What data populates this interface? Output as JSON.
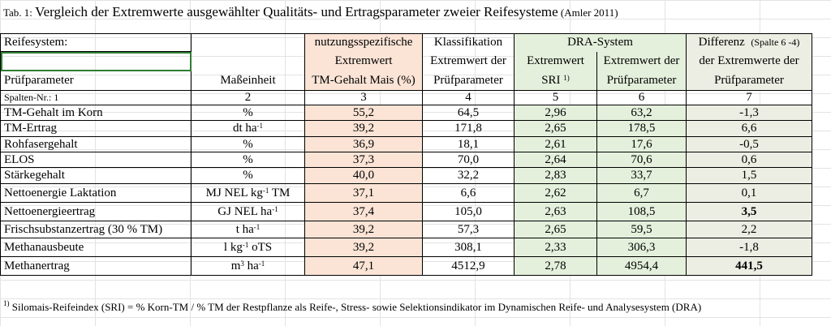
{
  "title": {
    "prefix": "Tab. 1: ",
    "main": "Vergleich der Extremwerte ausgewählter Qualitäts- und Ertragsparameter zweier Reifesysteme",
    "source": "(Amler 2011)"
  },
  "header": {
    "reifesystem": "Reifesystem:",
    "nutzung": "nutzungsspezifische",
    "klassifikation": "Klassifikation",
    "dra": "DRA-System",
    "differenz": "Differenz",
    "differenz_note": "(Spalte 6 -4)",
    "extremwert": "Extremwert",
    "extremwert_der": "Extremwert der",
    "extremwert_dra": "Extremwert",
    "extremwert_der_dra": "Extremwert der",
    "der_extremwerte": "der Extremwerte der",
    "pruefparameter": "Prüfparameter",
    "masseinheit": "Maßeinheit",
    "tm_gehalt_mais": "TM-Gehalt Mais (%)",
    "pruefparameter_c4": "Prüfparameter",
    "sri": "SRI",
    "sri_sup": "1)",
    "pruefparameter_c6": "Prüfparameter",
    "pruefparameter_c7": "Prüfparameter",
    "spalten_nr": "Spalten-Nr.: 1",
    "col_numbers": [
      "2",
      "3",
      "4",
      "5",
      "6",
      "7"
    ]
  },
  "rows": [
    {
      "param": "TM-Gehalt im Korn",
      "unit": "%",
      "unit_sup": "",
      "unit_tail": "",
      "c3": "55,2",
      "c4": "64,5",
      "c5": "2,96",
      "c6": "63,2",
      "c7": "-1,3",
      "bold": false
    },
    {
      "param": "TM-Ertrag",
      "unit": "dt ha",
      "unit_sup": "-1",
      "unit_tail": "",
      "c3": "39,2",
      "c4": "171,8",
      "c5": "2,65",
      "c6": "178,5",
      "c7": "6,6",
      "bold": false
    },
    {
      "param": "Rohfasergehalt",
      "unit": "%",
      "unit_sup": "",
      "unit_tail": "",
      "c3": "36,9",
      "c4": "18,1",
      "c5": "2,61",
      "c6": "17,6",
      "c7": "-0,5",
      "bold": false
    },
    {
      "param": "ELOS",
      "unit": "%",
      "unit_sup": "",
      "unit_tail": "",
      "c3": "37,3",
      "c4": "70,0",
      "c5": "2,64",
      "c6": "70,6",
      "c7": "0,6",
      "bold": false
    },
    {
      "param": "Stärkegehalt",
      "unit": "%",
      "unit_sup": "",
      "unit_tail": "",
      "c3": "40,0",
      "c4": "32,2",
      "c5": "2,83",
      "c6": "33,7",
      "c7": "1,5",
      "bold": false
    },
    {
      "param": "Nettoenergie Laktation",
      "unit": "MJ NEL kg",
      "unit_sup": "-1",
      "unit_tail": " TM",
      "c3": "37,1",
      "c4": "6,6",
      "c5": "2,62",
      "c6": "6,7",
      "c7": "0,1",
      "bold": false
    },
    {
      "param": "Nettoenergieertrag",
      "unit": "GJ NEL ha",
      "unit_sup": "-1",
      "unit_tail": "",
      "c3": "37,4",
      "c4": "105,0",
      "c5": "2,63",
      "c6": "108,5",
      "c7": "3,5",
      "bold": true
    },
    {
      "param": "Frischsubstanzertrag (30 % TM)",
      "unit": "t ha",
      "unit_sup": "-1",
      "unit_tail": "",
      "c3": "39,2",
      "c4": "57,3",
      "c5": "2,65",
      "c6": "59,5",
      "c7": "2,2",
      "bold": false
    },
    {
      "param": "Methanausbeute",
      "unit": "l kg",
      "unit_sup": "-1",
      "unit_tail": " oTS",
      "c3": "39,2",
      "c4": "308,1",
      "c5": "2,33",
      "c6": "306,3",
      "c7": "-1,8",
      "bold": false
    },
    {
      "param": "Methanertrag",
      "unit": "m",
      "unit_sup": "3",
      "unit_tail": " ha",
      "unit_sup2": "-1",
      "c3": "47,1",
      "c4": "4512,9",
      "c5": "2,78",
      "c6": "4954,4",
      "c7": "441,5",
      "bold": true
    }
  ],
  "footnote": {
    "marker": "1)",
    "text": " Silomais-Reifeindex (SRI) = % Korn-TM / % TM der Restpflanze als Reife-, Stress- sowie Selektionsindikator im Dynamischen Reife- und Analysesystem (DRA)"
  },
  "colors": {
    "col3_fill": "#fbe4d6",
    "col5_6_fill": "#e4f0dc",
    "col7_fill": "#eceee3",
    "selection_outline": "#2e7d32"
  }
}
